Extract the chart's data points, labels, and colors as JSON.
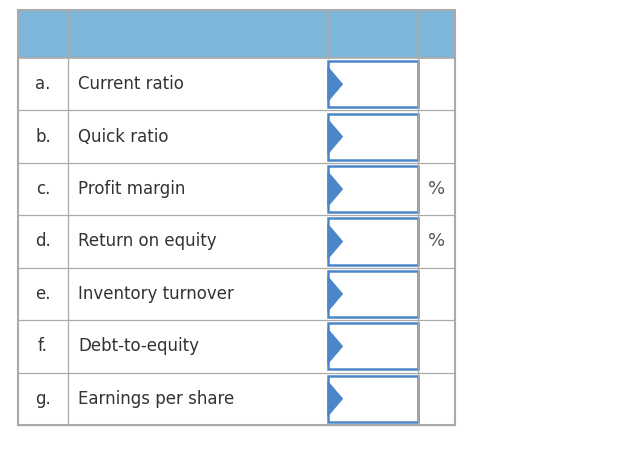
{
  "rows": [
    {
      "letter": "a.",
      "label": "Current ratio",
      "has_percent": false
    },
    {
      "letter": "b.",
      "label": "Quick ratio",
      "has_percent": false
    },
    {
      "letter": "c.",
      "label": "Profit margin",
      "has_percent": true
    },
    {
      "letter": "d.",
      "label": "Return on equity",
      "has_percent": true
    },
    {
      "letter": "e.",
      "label": "Inventory turnover",
      "has_percent": false
    },
    {
      "letter": "f.",
      "label": "Debt-to-equity",
      "has_percent": false
    },
    {
      "letter": "g.",
      "label": "Earnings per share",
      "has_percent": false
    }
  ],
  "header_color": "#7eb6d9",
  "border_color": "#aaaaaa",
  "arrow_color": "#4a86c8",
  "input_box_color": "#ffffff",
  "input_box_border": "#4a86c8",
  "text_color": "#333333",
  "percent_color": "#555555",
  "background_color": "#ffffff",
  "label_fontsize": 12,
  "letter_fontsize": 12,
  "percent_fontsize": 13
}
